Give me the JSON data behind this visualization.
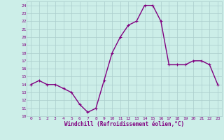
{
  "hours": [
    0,
    1,
    2,
    3,
    4,
    5,
    6,
    7,
    8,
    9,
    10,
    11,
    12,
    13,
    14,
    15,
    16,
    17,
    18,
    19,
    20,
    21,
    22,
    23
  ],
  "values": [
    14,
    14.5,
    14,
    14,
    13.5,
    13,
    11.5,
    10.5,
    11,
    14.5,
    18,
    20,
    21.5,
    22,
    24,
    24,
    22,
    16.5,
    16.5,
    16.5,
    17,
    17,
    16.5,
    14
  ],
  "line_color": "#800080",
  "marker": "+",
  "marker_color": "#800080",
  "bg_color": "#cceee8",
  "grid_color": "#aacccc",
  "xlabel": "Windchill (Refroidissement éolien,°C)",
  "xlabel_color": "#800080",
  "tick_color": "#800080",
  "ylim": [
    10,
    24.5
  ],
  "yticks": [
    10,
    11,
    12,
    13,
    14,
    15,
    16,
    17,
    18,
    19,
    20,
    21,
    22,
    23,
    24
  ],
  "xticks": [
    0,
    1,
    2,
    3,
    4,
    5,
    6,
    7,
    8,
    9,
    10,
    11,
    12,
    13,
    14,
    15,
    16,
    17,
    18,
    19,
    20,
    21,
    22,
    23
  ],
  "line_width": 1.0,
  "marker_size": 3
}
